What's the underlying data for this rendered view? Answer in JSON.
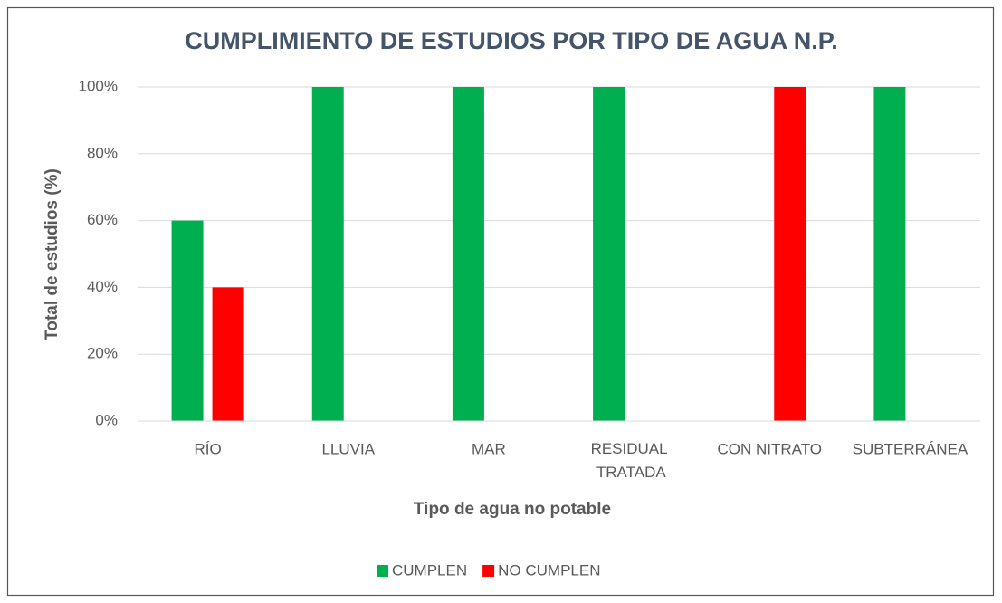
{
  "chart_data": {
    "type": "bar",
    "title": "CUMPLIMIENTO DE ESTUDIOS POR TIPO DE AGUA N.P.",
    "x_label": "Tipo de agua no potable",
    "y_label": "Total de estudios (%)",
    "categories": [
      "RÍO",
      "LLUVIA",
      "MAR",
      "RESIDUAL TRATADA",
      "CON NITRATO",
      "SUBTERRÁNEA"
    ],
    "series": [
      {
        "name": "CUMPLEN",
        "color": "#00b050",
        "values": [
          60,
          100,
          100,
          100,
          0,
          100
        ]
      },
      {
        "name": "NO CUMPLEN",
        "color": "#ff0000",
        "values": [
          40,
          0,
          0,
          0,
          100,
          0
        ]
      }
    ],
    "ylim": [
      0,
      100
    ],
    "yticks": [
      {
        "value": 0,
        "label": "0%"
      },
      {
        "value": 20,
        "label": "20%"
      },
      {
        "value": 40,
        "label": "40%"
      },
      {
        "value": 60,
        "label": "60%"
      },
      {
        "value": 80,
        "label": "80%"
      },
      {
        "value": 100,
        "label": "100%"
      }
    ],
    "grid": true,
    "legend": "bottom"
  }
}
